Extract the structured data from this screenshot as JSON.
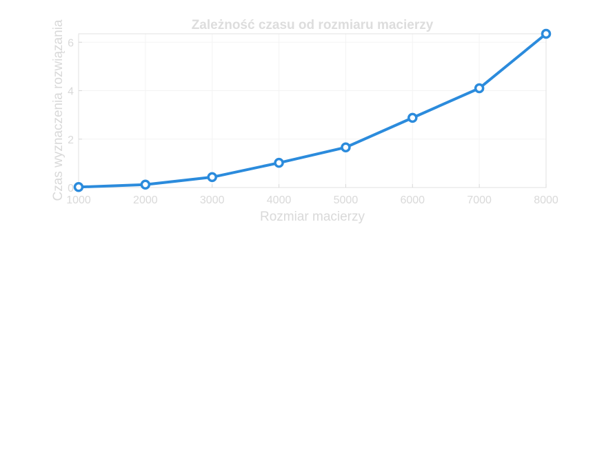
{
  "chart_data": {
    "type": "line",
    "title": "Zależność czasu od rozmiaru macierzy",
    "xlabel": "Rozmiar macierzy",
    "ylabel": "Czas wyznaczenia rozwiązania",
    "x": [
      1000,
      2000,
      3000,
      4000,
      5000,
      6000,
      7000,
      8000
    ],
    "series": [
      {
        "values": [
          0.02,
          0.12,
          0.43,
          1.02,
          1.66,
          2.88,
          4.1,
          6.35
        ]
      }
    ],
    "xlim": [
      1000,
      8000
    ],
    "ylim": [
      0,
      6.35
    ],
    "xticks": [
      1000,
      2000,
      3000,
      4000,
      5000,
      6000,
      7000,
      8000
    ],
    "yticks": [
      0,
      2,
      4,
      6
    ],
    "grid": true,
    "line_color": "#2b8bdc",
    "marker": "circle"
  }
}
